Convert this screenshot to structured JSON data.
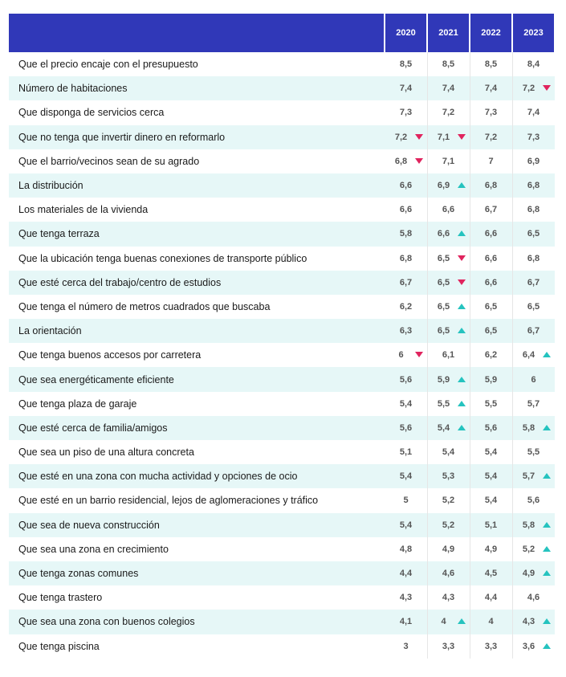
{
  "chart_data": {
    "type": "table",
    "columns": [
      "2020",
      "2021",
      "2022",
      "2023"
    ],
    "colors": {
      "header": "#3038b8",
      "stripe": "#e6f7f7",
      "up": "#25c3bf",
      "down": "#e0245e"
    },
    "rows": [
      {
        "label": "Que el precio encaje con el presupuesto",
        "cells": [
          {
            "v": "8,5"
          },
          {
            "v": "8,5"
          },
          {
            "v": "8,5"
          },
          {
            "v": "8,4"
          }
        ]
      },
      {
        "label": "Número de habitaciones",
        "cells": [
          {
            "v": "7,4"
          },
          {
            "v": "7,4"
          },
          {
            "v": "7,4"
          },
          {
            "v": "7,2",
            "t": "down"
          }
        ]
      },
      {
        "label": "Que disponga de servicios cerca",
        "cells": [
          {
            "v": "7,3"
          },
          {
            "v": "7,2"
          },
          {
            "v": "7,3"
          },
          {
            "v": "7,4"
          }
        ]
      },
      {
        "label": "Que no tenga que invertir dinero en reformarlo",
        "cells": [
          {
            "v": "7,2",
            "t": "down"
          },
          {
            "v": "7,1",
            "t": "down"
          },
          {
            "v": "7,2"
          },
          {
            "v": "7,3"
          }
        ]
      },
      {
        "label": "Que el barrio/vecinos sean de su agrado",
        "cells": [
          {
            "v": "6,8",
            "t": "down"
          },
          {
            "v": "7,1"
          },
          {
            "v": "7"
          },
          {
            "v": "6,9"
          }
        ]
      },
      {
        "label": "La distribución",
        "cells": [
          {
            "v": "6,6"
          },
          {
            "v": "6,9",
            "t": "up"
          },
          {
            "v": "6,8"
          },
          {
            "v": "6,8"
          }
        ]
      },
      {
        "label": "Los materiales de la vivienda",
        "cells": [
          {
            "v": "6,6"
          },
          {
            "v": "6,6"
          },
          {
            "v": "6,7"
          },
          {
            "v": "6,8"
          }
        ]
      },
      {
        "label": "Que tenga terraza",
        "cells": [
          {
            "v": "5,8"
          },
          {
            "v": "6,6",
            "t": "up"
          },
          {
            "v": "6,6"
          },
          {
            "v": "6,5"
          }
        ]
      },
      {
        "label": "Que la ubicación tenga buenas conexiones de transporte público",
        "cells": [
          {
            "v": "6,8"
          },
          {
            "v": "6,5",
            "t": "down"
          },
          {
            "v": "6,6"
          },
          {
            "v": "6,8"
          }
        ]
      },
      {
        "label": "Que esté cerca del trabajo/centro de estudios",
        "cells": [
          {
            "v": "6,7"
          },
          {
            "v": "6,5",
            "t": "down"
          },
          {
            "v": "6,6"
          },
          {
            "v": "6,7"
          }
        ]
      },
      {
        "label": "Que tenga el número de metros cuadrados que buscaba",
        "cells": [
          {
            "v": "6,2"
          },
          {
            "v": "6,5",
            "t": "up"
          },
          {
            "v": "6,5"
          },
          {
            "v": "6,5"
          }
        ]
      },
      {
        "label": "La orientación",
        "cells": [
          {
            "v": "6,3"
          },
          {
            "v": "6,5",
            "t": "up"
          },
          {
            "v": "6,5"
          },
          {
            "v": "6,7"
          }
        ]
      },
      {
        "label": "Que tenga buenos accesos por carretera",
        "cells": [
          {
            "v": "6",
            "t": "down"
          },
          {
            "v": "6,1"
          },
          {
            "v": "6,2"
          },
          {
            "v": "6,4",
            "t": "up"
          }
        ]
      },
      {
        "label": "Que sea energéticamente eficiente",
        "cells": [
          {
            "v": "5,6"
          },
          {
            "v": "5,9",
            "t": "up"
          },
          {
            "v": "5,9"
          },
          {
            "v": "6"
          }
        ]
      },
      {
        "label": "Que tenga plaza de garaje",
        "cells": [
          {
            "v": "5,4"
          },
          {
            "v": "5,5",
            "t": "up"
          },
          {
            "v": "5,5"
          },
          {
            "v": "5,7"
          }
        ]
      },
      {
        "label": "Que esté cerca de familia/amigos",
        "cells": [
          {
            "v": "5,6"
          },
          {
            "v": "5,4",
            "t": "up"
          },
          {
            "v": "5,6"
          },
          {
            "v": "5,8",
            "t": "up"
          }
        ]
      },
      {
        "label": "Que sea un piso de una altura concreta",
        "cells": [
          {
            "v": "5,1"
          },
          {
            "v": "5,4"
          },
          {
            "v": "5,4"
          },
          {
            "v": "5,5"
          }
        ]
      },
      {
        "label": "Que esté en una zona con mucha actividad y opciones de ocio",
        "cells": [
          {
            "v": "5,4"
          },
          {
            "v": "5,3"
          },
          {
            "v": "5,4"
          },
          {
            "v": "5,7",
            "t": "up"
          }
        ]
      },
      {
        "label": "Que esté en un barrio residencial, lejos de aglomeraciones y tráfico",
        "cells": [
          {
            "v": "5"
          },
          {
            "v": "5,2"
          },
          {
            "v": "5,4"
          },
          {
            "v": "5,6"
          }
        ]
      },
      {
        "label": "Que sea de nueva construcción",
        "cells": [
          {
            "v": "5,4"
          },
          {
            "v": "5,2"
          },
          {
            "v": "5,1"
          },
          {
            "v": "5,8",
            "t": "up"
          }
        ]
      },
      {
        "label": "Que sea una zona en crecimiento",
        "cells": [
          {
            "v": "4,8"
          },
          {
            "v": "4,9"
          },
          {
            "v": "4,9"
          },
          {
            "v": "5,2",
            "t": "up"
          }
        ]
      },
      {
        "label": "Que tenga zonas comunes",
        "cells": [
          {
            "v": "4,4"
          },
          {
            "v": "4,6"
          },
          {
            "v": "4,5"
          },
          {
            "v": "4,9",
            "t": "up"
          }
        ]
      },
      {
        "label": "Que tenga trastero",
        "cells": [
          {
            "v": "4,3"
          },
          {
            "v": "4,3"
          },
          {
            "v": "4,4"
          },
          {
            "v": "4,6"
          }
        ]
      },
      {
        "label": "Que sea una zona con buenos colegios",
        "cells": [
          {
            "v": "4,1"
          },
          {
            "v": "4",
            "t": "up"
          },
          {
            "v": "4"
          },
          {
            "v": "4,3",
            "t": "up"
          }
        ]
      },
      {
        "label": "Que tenga piscina",
        "cells": [
          {
            "v": "3"
          },
          {
            "v": "3,3"
          },
          {
            "v": "3,3"
          },
          {
            "v": "3,6",
            "t": "up"
          }
        ]
      }
    ]
  }
}
